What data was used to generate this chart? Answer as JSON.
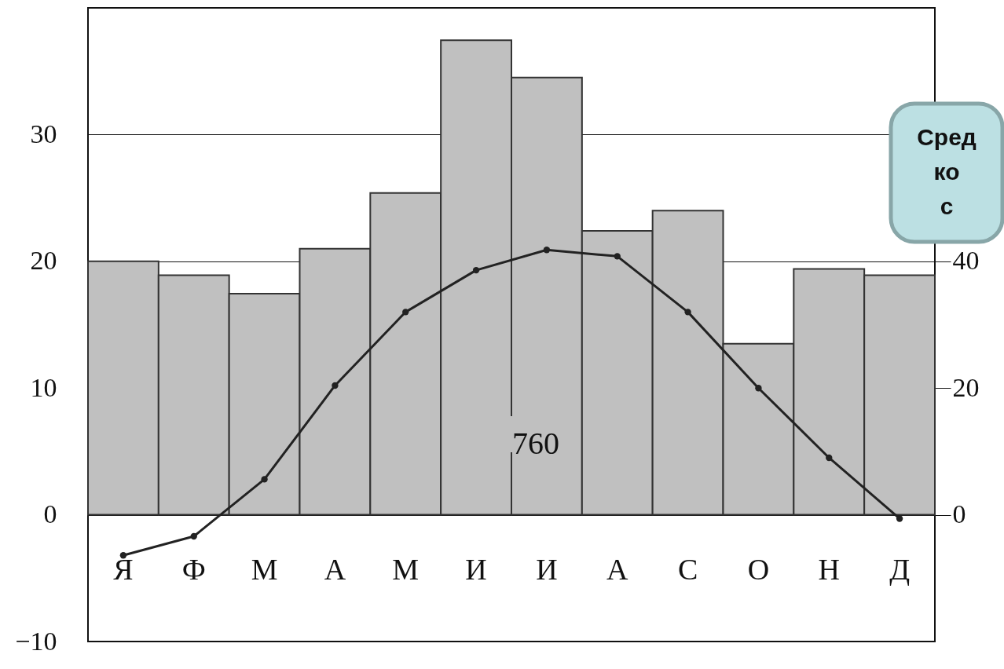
{
  "chart_data": {
    "type": "bar",
    "categories": [
      "Я",
      "Ф",
      "М",
      "А",
      "М",
      "И",
      "И",
      "А",
      "С",
      "О",
      "Н",
      "Д"
    ],
    "series": [
      {
        "axis": "y2",
        "color": "#c0c0c0",
        "values": [
          40,
          37.8,
          34.9,
          42,
          50.8,
          74.9,
          69,
          44.8,
          48,
          27,
          38.8,
          37.8
        ]
      },
      {
        "type": "line",
        "axis": "y",
        "color": "#222222",
        "marker": "circle",
        "values": [
          -3.2,
          -1.7,
          2.8,
          10.2,
          16,
          19.3,
          20.9,
          20.4,
          16,
          10,
          4.5,
          -0.3
        ]
      }
    ],
    "ylim": [
      -10,
      40
    ],
    "yticks": [
      -10,
      0,
      10,
      20,
      30
    ],
    "y2lim": [
      -20,
      80
    ],
    "y2ticks": [
      0,
      20,
      40
    ],
    "grid": true,
    "annotations": [
      "760",
      "Сред\nко\nс"
    ]
  }
}
